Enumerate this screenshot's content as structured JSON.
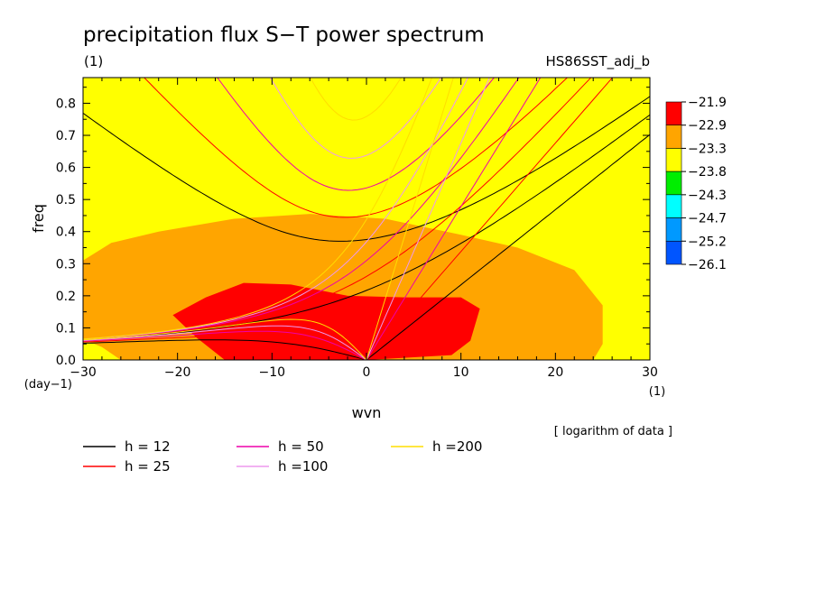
{
  "chart_data": {
    "type": "heatmap",
    "title": "precipitation flux S−T power spectrum",
    "units_left": "(1)",
    "run_name": "HS86SST_adj_b",
    "xlabel": "wvn",
    "ylabel": "freq",
    "xunit": "(1)",
    "yunit": "(day−1)",
    "xlim": [
      -30,
      30
    ],
    "ylim": [
      0,
      0.88
    ],
    "xticks": [
      -30,
      -20,
      -10,
      0,
      10,
      20,
      30
    ],
    "xtick_labels": [
      "−30",
      "−20",
      "−10",
      "0",
      "10",
      "20",
      "30"
    ],
    "yticks": [
      0.0,
      0.1,
      0.2,
      0.3,
      0.4,
      0.5,
      0.6,
      0.7,
      0.8
    ],
    "ytick_labels": [
      "0.0",
      "0.1",
      "0.2",
      "0.3",
      "0.4",
      "0.5",
      "0.6",
      "0.7",
      "0.8"
    ],
    "note": "[ logarithm of data ]",
    "colorbar": {
      "levels": [
        "−21.9",
        "−22.9",
        "−23.3",
        "−23.8",
        "−24.3",
        "−24.7",
        "−25.2",
        "−26.1"
      ],
      "colors": [
        "#ff0000",
        "#ffa500",
        "#ffff00",
        "#00ee00",
        "#00ffff",
        "#0099ff",
        "#0055ff"
      ]
    },
    "band_colors_low_to_high": [
      "#0055ff",
      "#0099ff",
      "#00ffff",
      "#00ee00",
      "#ffff00",
      "#ffa500",
      "#ff0000"
    ],
    "dispersion_legend": [
      {
        "label": "h = 12",
        "h": 12,
        "color": "#000000"
      },
      {
        "label": "h = 25",
        "h": 25,
        "color": "#ff0000"
      },
      {
        "label": "h = 50",
        "h": 50,
        "color": "#ee00aa"
      },
      {
        "label": "h =100",
        "h": 100,
        "color": "#ee99ee"
      },
      {
        "label": "h =200",
        "h": 200,
        "color": "#ffdd00"
      }
    ]
  }
}
